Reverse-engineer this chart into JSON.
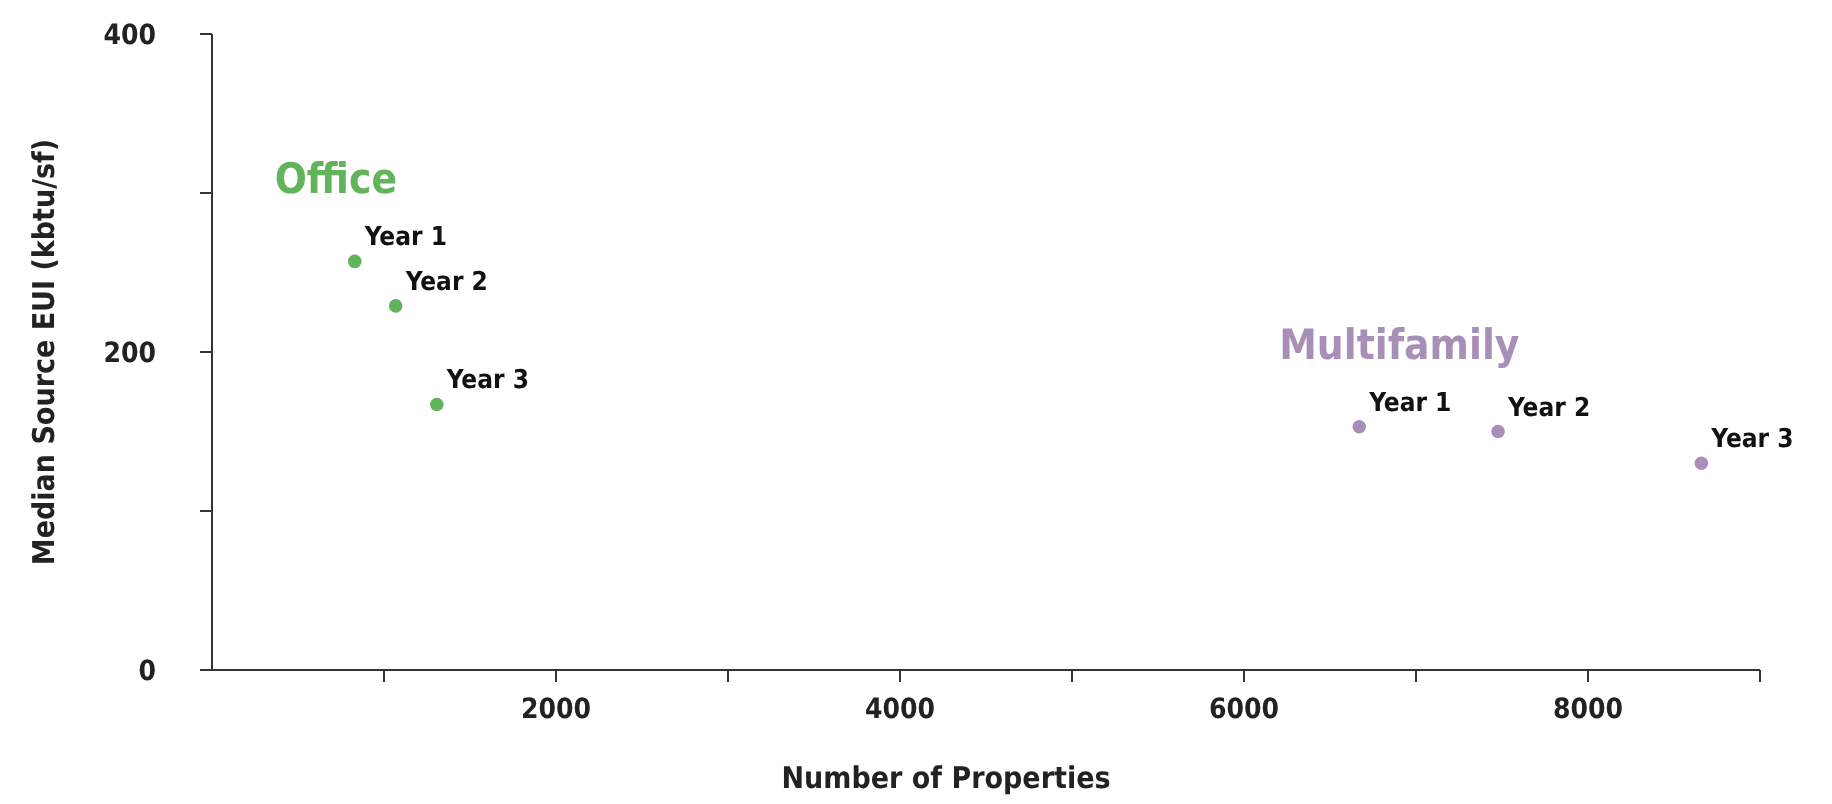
{
  "chart_data": {
    "type": "scatter",
    "xlabel": "Number of Properties",
    "ylabel": "Median Source EUI (kbtu/sf)",
    "xlim": [
      0,
      9000
    ],
    "xticks": [
      {
        "value": 1000,
        "label": null
      },
      2000,
      {
        "value": 3000,
        "label": null
      },
      4000,
      {
        "value": 5000,
        "label": null
      },
      6000,
      {
        "value": 7000,
        "label": null
      },
      8000,
      {
        "value": 9000,
        "label": null
      }
    ],
    "ylim": [
      0,
      400
    ],
    "yticks": [
      0,
      {
        "value": 100,
        "label": null
      },
      200,
      {
        "value": 300,
        "label": null
      },
      400
    ],
    "grid": false,
    "marker": "circle",
    "series": [
      {
        "name": "Office",
        "color": "#62b45a",
        "x": [
          830,
          1068,
          1307
        ],
        "values": [
          257,
          229,
          167
        ]
      },
      {
        "name": "Multifamily",
        "color": "#a88fb8",
        "x": [
          6670,
          7477,
          8659
        ],
        "values": [
          153,
          150,
          130
        ]
      }
    ],
    "annotations": [
      {
        "text": "Year 1",
        "x": 830,
        "y": 257
      },
      {
        "text": "Year 2",
        "x": 1068,
        "y": 229
      },
      {
        "text": "Year 3",
        "x": 1307,
        "y": 167
      },
      {
        "text": "Year 1",
        "x": 6670,
        "y": 153
      },
      {
        "text": "Year 2",
        "x": 7477,
        "y": 150
      },
      {
        "text": "Year 3",
        "x": 8659,
        "y": 130
      }
    ]
  }
}
